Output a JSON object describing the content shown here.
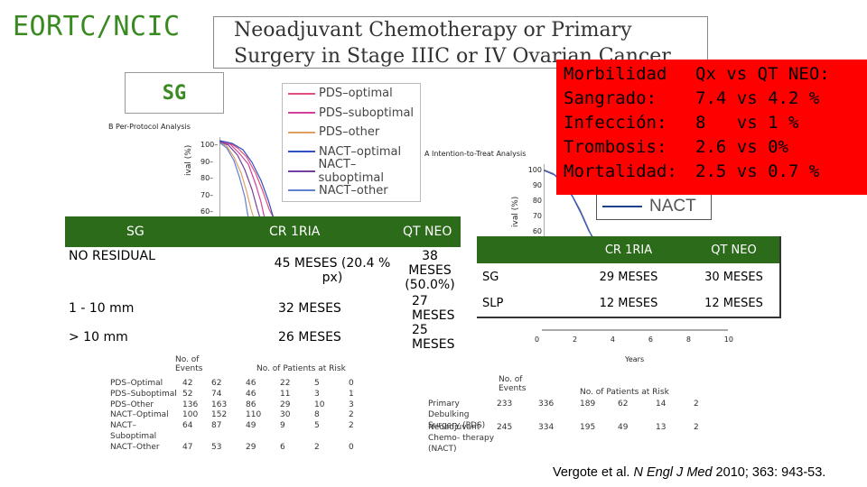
{
  "slide_title": "EORTC/NCIC",
  "paper_title": [
    "Neoadjuvant Chemotherapy or Primary",
    "Surgery in Stage IIIC or IV Ovarian Cancer"
  ],
  "sg_label": "SG",
  "legend": [
    {
      "label": "PDS–optimal",
      "color": "#e0507a"
    },
    {
      "label": "PDS–suboptimal",
      "color": "#d0409a"
    },
    {
      "label": "PDS–other",
      "color": "#e0a060"
    },
    {
      "label": "NACT–optimal",
      "color": "#3050c0"
    },
    {
      "label": "NACT–suboptimal",
      "color": "#7040a0"
    },
    {
      "label": "NACT–other",
      "color": "#6080d0"
    }
  ],
  "left_panel": {
    "caption": "B  Per-Protocol Analysis",
    "yticks": [
      "100–",
      "90–",
      "80–",
      "70–",
      "60–"
    ],
    "ylabel": "ival (%)"
  },
  "right_panel": {
    "caption": "A  Intention-to-Treat Analysis",
    "yticks": [
      "100",
      "90",
      "80",
      "70",
      "60"
    ],
    "ylabel": "ival (%)",
    "xticks": [
      "0",
      "2",
      "4",
      "6",
      "8",
      "10"
    ],
    "xlabel": "Years",
    "legend_label": "NACT"
  },
  "red_box": {
    "rows": [
      {
        "k": "Morbilidad",
        "v": "Qx vs QT NEO:"
      },
      {
        "k": "Sangrado:",
        "v": "7.4 vs 4.2 %"
      },
      {
        "k": "Infección:",
        "v": "8   vs 1 %"
      },
      {
        "k": "Trombosis:",
        "v": "2.6 vs 0%"
      },
      {
        "k": "Mortalidad:",
        "v": "2.5 vs 0.7 %"
      }
    ]
  },
  "table1": {
    "header": [
      "SG",
      "CR 1RIA",
      "QT NEO"
    ],
    "rows": [
      [
        "NO RESIDUAL",
        "45 MESES (20.4 % px)",
        "38 MESES (50.0%)"
      ],
      [
        "1 - 10 mm",
        "32 MESES",
        "27 MESES"
      ],
      [
        "> 10 mm",
        "26 MESES",
        "25 MESES"
      ]
    ]
  },
  "table2": {
    "header": [
      "",
      "CR 1RIA",
      "QT NEO"
    ],
    "rows": [
      [
        "SG",
        "29 MESES",
        "30 MESES"
      ],
      [
        "SLP",
        "12 MESES",
        "12 MESES"
      ]
    ]
  },
  "left_risk": {
    "events_header": "No. of Events",
    "risk_header": "No. of Patients at Risk",
    "rows": [
      {
        "label": "PDS–Optimal",
        "events": "42",
        "n": [
          "62",
          "46",
          "22",
          "5",
          "0"
        ]
      },
      {
        "label": "PDS–Suboptimal",
        "events": "52",
        "n": [
          "74",
          "46",
          "11",
          "3",
          "1"
        ]
      },
      {
        "label": "PDS–Other",
        "events": "136",
        "n": [
          "163",
          "86",
          "29",
          "10",
          "3"
        ]
      },
      {
        "label": "NACT–Optimal",
        "events": "100",
        "n": [
          "152",
          "110",
          "30",
          "8",
          "2"
        ]
      },
      {
        "label": "NACT–Suboptimal",
        "events": "64",
        "n": [
          "87",
          "49",
          "9",
          "5",
          "2"
        ]
      },
      {
        "label": "NACT–Other",
        "events": "47",
        "n": [
          "53",
          "29",
          "6",
          "2",
          "0"
        ]
      }
    ]
  },
  "right_risk": {
    "events_header": "No. of Events",
    "risk_header": "No. of Patients at Risk",
    "rows": [
      {
        "label": "Primary Debulking Surgery (PDS)",
        "events": "233",
        "n": [
          "336",
          "189",
          "62",
          "14",
          "2"
        ]
      },
      {
        "label": "Neoadjuvant Chemo- therapy (NACT)",
        "events": "245",
        "n": [
          "334",
          "195",
          "49",
          "13",
          "2"
        ]
      }
    ]
  },
  "citation": {
    "authors": "Vergote et al. ",
    "journal": "N Engl J Med",
    "year": " 2010",
    "rest": "; 363: 943-53."
  }
}
